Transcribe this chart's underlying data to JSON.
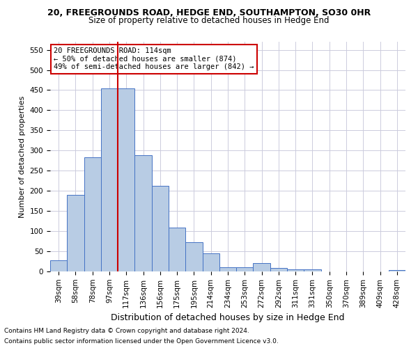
{
  "title1": "20, FREEGROUNDS ROAD, HEDGE END, SOUTHAMPTON, SO30 0HR",
  "title2": "Size of property relative to detached houses in Hedge End",
  "xlabel": "Distribution of detached houses by size in Hedge End",
  "ylabel": "Number of detached properties",
  "categories": [
    "39sqm",
    "58sqm",
    "78sqm",
    "97sqm",
    "117sqm",
    "136sqm",
    "156sqm",
    "175sqm",
    "195sqm",
    "214sqm",
    "234sqm",
    "253sqm",
    "272sqm",
    "292sqm",
    "311sqm",
    "331sqm",
    "350sqm",
    "370sqm",
    "389sqm",
    "409sqm",
    "428sqm"
  ],
  "values": [
    28,
    190,
    283,
    455,
    455,
    288,
    212,
    108,
    73,
    45,
    11,
    11,
    20,
    8,
    5,
    5,
    0,
    0,
    0,
    0,
    4
  ],
  "bar_color": "#b8cce4",
  "bar_edge_color": "#4472c4",
  "vline_x_index": 4,
  "vline_color": "#cc0000",
  "annotation_text": "20 FREEGROUNDS ROAD: 114sqm\n← 50% of detached houses are smaller (874)\n49% of semi-detached houses are larger (842) →",
  "annotation_box_color": "#ffffff",
  "annotation_box_edge_color": "#cc0000",
  "ylim": [
    0,
    570
  ],
  "yticks": [
    0,
    50,
    100,
    150,
    200,
    250,
    300,
    350,
    400,
    450,
    500,
    550
  ],
  "footnote1": "Contains HM Land Registry data © Crown copyright and database right 2024.",
  "footnote2": "Contains public sector information licensed under the Open Government Licence v3.0.",
  "background_color": "#ffffff",
  "grid_color": "#ccccdd",
  "title1_fontsize": 9,
  "title2_fontsize": 8.5,
  "ylabel_fontsize": 8,
  "xlabel_fontsize": 9,
  "tick_fontsize": 7.5,
  "annot_fontsize": 7.5,
  "footnote_fontsize": 6.5
}
